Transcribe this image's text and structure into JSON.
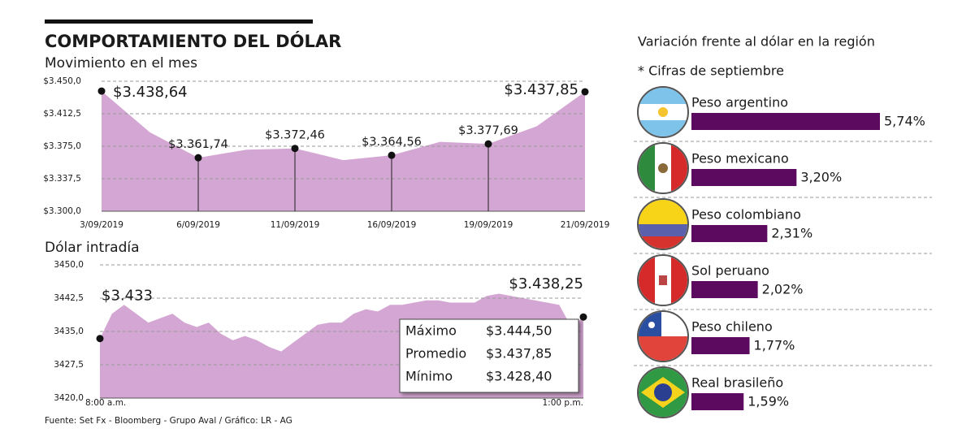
{
  "title": "COMPORTAMIENTO DEL DÓLAR",
  "source": "Fuente: Set Fx - Bloomberg - Grupo Aval / Gráfico: LR - AG",
  "chart_data": [
    {
      "type": "area",
      "title": "Movimiento en el mes",
      "color": "#d4a6d3",
      "categories": [
        "3/09/2019",
        null,
        "6/09/2019",
        null,
        "11/09/2019",
        null,
        "16/09/2019",
        null,
        "19/09/2019",
        null,
        "21/09/2019"
      ],
      "values": [
        3438.64,
        3391,
        3361.74,
        3371,
        3372.46,
        3359,
        3364.56,
        3380,
        3377.69,
        3398,
        3437.85
      ],
      "value_labels": [
        "$3.438,64",
        null,
        "$3.361,74",
        null,
        "$3.372,46",
        null,
        "$3.364,56",
        null,
        "$3.377,69",
        null,
        "$3.437,85"
      ],
      "ylim": [
        3300,
        3450
      ],
      "yticks": [
        {
          "value": 3300,
          "label": "$3.300,0"
        },
        {
          "value": 3337.5,
          "label": "$3.337,5"
        },
        {
          "value": 3375,
          "label": "$3.375,0"
        },
        {
          "value": 3412.5,
          "label": "$3.412,5"
        },
        {
          "value": 3450,
          "label": "$3.450,0"
        }
      ],
      "grid": true
    },
    {
      "type": "area",
      "title": "Dólar intradía",
      "color": "#d4a6d3",
      "categories": [
        "8:00 a.m.",
        null,
        null,
        null,
        null,
        null,
        null,
        null,
        null,
        null,
        null,
        null,
        null,
        null,
        null,
        null,
        null,
        null,
        null,
        null,
        null,
        null,
        null,
        null,
        null,
        null,
        null,
        null,
        null,
        null,
        null,
        null,
        null,
        null,
        null,
        null,
        null,
        null,
        null,
        null,
        "1:00 p.m."
      ],
      "values": [
        3433.4,
        3439,
        3441,
        3439,
        3437,
        3438,
        3439,
        3437,
        3436,
        3437,
        3434.5,
        3433,
        3434,
        3433,
        3431.5,
        3430.5,
        3432.5,
        3434.5,
        3436.5,
        3437,
        3437,
        3439,
        3440,
        3439.5,
        3441,
        3441,
        3441.5,
        3442,
        3442,
        3441.5,
        3441.5,
        3441.5,
        3443,
        3443.5,
        3443,
        3442.5,
        3442,
        3441.5,
        3441,
        3436,
        3438.25
      ],
      "value_labels": [
        "$3.433",
        null,
        null,
        null,
        null,
        null,
        null,
        null,
        null,
        null,
        null,
        null,
        null,
        null,
        null,
        null,
        null,
        null,
        null,
        null,
        null,
        null,
        null,
        null,
        null,
        null,
        null,
        null,
        null,
        null,
        null,
        null,
        null,
        null,
        null,
        null,
        null,
        null,
        null,
        null,
        "$3.438,25"
      ],
      "ylim": [
        3420,
        3450
      ],
      "yticks": [
        {
          "value": 3420,
          "label": "3420,0"
        },
        {
          "value": 3427.5,
          "label": "3427,5"
        },
        {
          "value": 3435,
          "label": "3435,0"
        },
        {
          "value": 3442.5,
          "label": "3442,5"
        },
        {
          "value": 3450,
          "label": "3450,0"
        }
      ],
      "grid": true,
      "stats": [
        {
          "label": "Máximo",
          "value": "$3.444,50"
        },
        {
          "label": "Promedio",
          "value": "$3.437,85"
        },
        {
          "label": "Mínimo",
          "value": "$3.428,40"
        }
      ]
    },
    {
      "type": "hbar",
      "title": "Variación frente al dólar en la región",
      "subtitle": "* Cifras de septiembre",
      "color": "#5c0a5f",
      "categories": [
        "Peso argentino",
        "Peso mexicano",
        "Peso colombiano",
        "Sol peruano",
        "Peso chileno",
        "Real brasileño"
      ],
      "values": [
        5.74,
        3.2,
        2.31,
        2.02,
        1.77,
        1.59
      ],
      "value_labels": [
        "5,74%",
        "3,20%",
        "2,31%",
        "2,02%",
        "1,77%",
        "1,59%"
      ]
    }
  ]
}
